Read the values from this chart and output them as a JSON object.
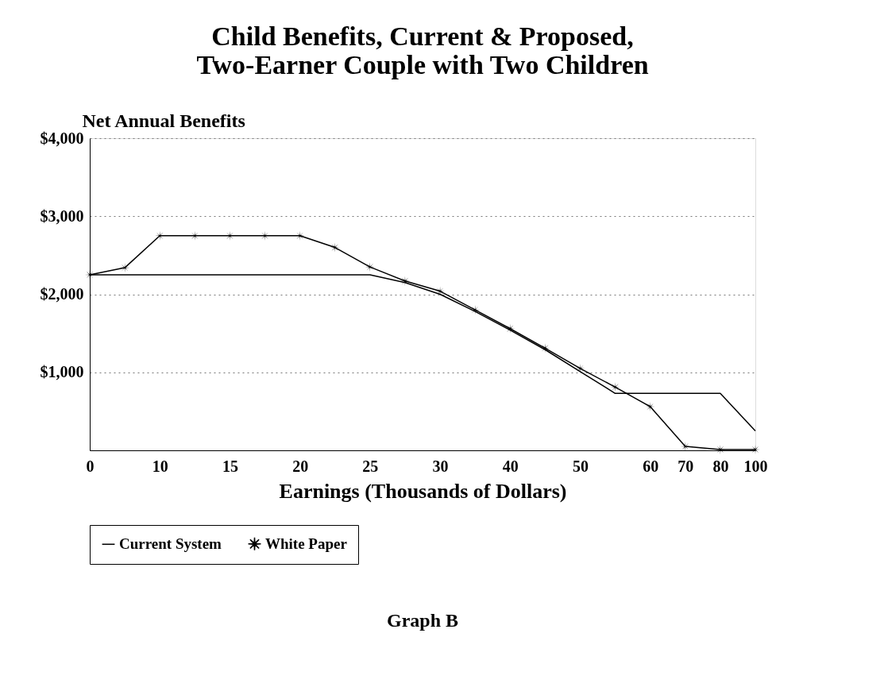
{
  "chart_data": {
    "type": "line",
    "title": [
      "Child Benefits, Current & Proposed,",
      "Two-Earner Couple with Two Children"
    ],
    "ylabel": "Net Annual Benefits",
    "xlabel": "Earnings (Thousands of Dollars)",
    "categories": [
      "0",
      null,
      "10",
      null,
      "15",
      null,
      "20",
      null,
      "25",
      null,
      "30",
      null,
      "40",
      null,
      "50",
      null,
      "60",
      "70",
      "80",
      "100"
    ],
    "series": [
      {
        "name": "Current System",
        "color": "#000000",
        "marker": "none",
        "values": [
          2250,
          2250,
          2250,
          2250,
          2250,
          2250,
          2250,
          2250,
          2250,
          2150,
          2000,
          1780,
          1540,
          1290,
          1010,
          730,
          730,
          730,
          730,
          250
        ]
      },
      {
        "name": "White Paper",
        "color": "#000000",
        "marker": "star",
        "values": [
          2250,
          2340,
          2750,
          2750,
          2750,
          2750,
          2750,
          2600,
          2350,
          2170,
          2040,
          1800,
          1560,
          1310,
          1050,
          810,
          560,
          50,
          10,
          10
        ]
      }
    ],
    "ylim": [
      0,
      4000
    ],
    "yticks": [
      {
        "value": 0,
        "label": null
      },
      {
        "value": 1000,
        "label": "$1,000"
      },
      {
        "value": 2000,
        "label": "$2,000"
      },
      {
        "value": 3000,
        "label": "$3,000"
      },
      {
        "value": 4000,
        "label": "$4,000"
      }
    ],
    "grid": "y",
    "legend": "bottom",
    "line_style": "solid",
    "annotations": [
      "Graph B"
    ]
  }
}
